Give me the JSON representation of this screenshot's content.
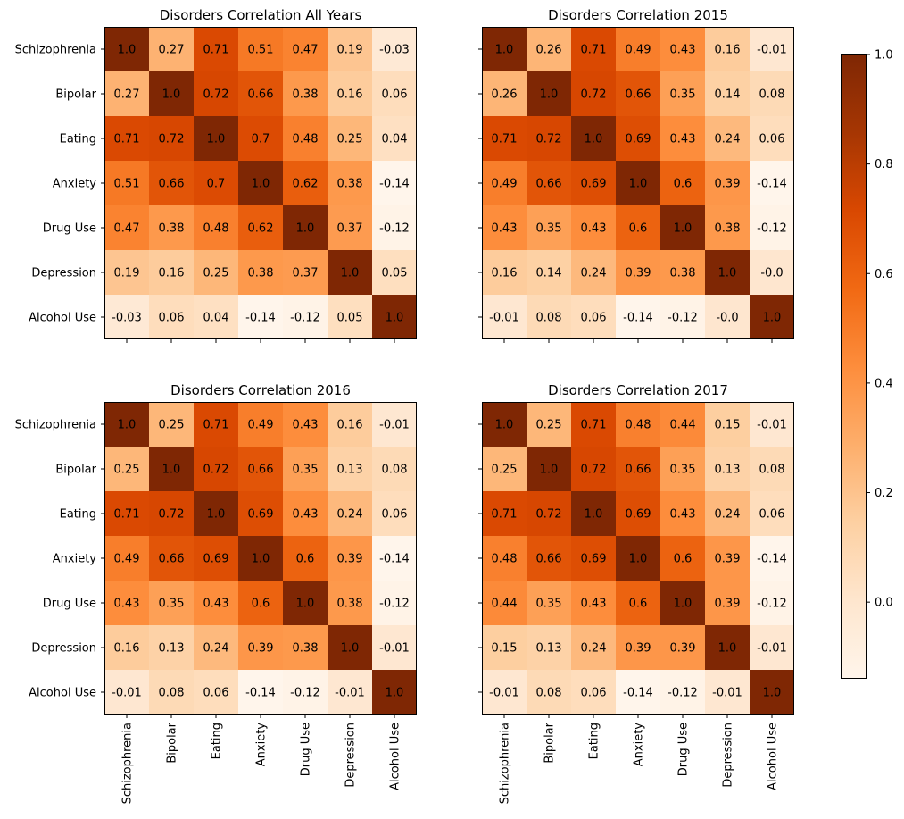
{
  "chart_data": {
    "type": "heatmap",
    "colormap": "Oranges",
    "colorbar": {
      "vmin": -0.14,
      "vmax": 1.0,
      "tick_values": [
        0.0,
        0.2,
        0.4,
        0.6,
        0.8,
        1.0
      ],
      "tick_labels": [
        "0.0",
        "0.2",
        "0.4",
        "0.6",
        "0.8",
        "1.0"
      ]
    },
    "categories": [
      "Schizophrenia",
      "Bipolar",
      "Eating",
      "Anxiety",
      "Drug Use",
      "Depression",
      "Alcohol Use"
    ],
    "panels": [
      {
        "title": "Disorders Correlation All Years",
        "matrix": [
          [
            1.0,
            0.27,
            0.71,
            0.51,
            0.47,
            0.19,
            -0.03
          ],
          [
            0.27,
            1.0,
            0.72,
            0.66,
            0.38,
            0.16,
            0.06
          ],
          [
            0.71,
            0.72,
            1.0,
            0.7,
            0.48,
            0.25,
            0.04
          ],
          [
            0.51,
            0.66,
            0.7,
            1.0,
            0.62,
            0.38,
            -0.14
          ],
          [
            0.47,
            0.38,
            0.48,
            0.62,
            1.0,
            0.37,
            -0.12
          ],
          [
            0.19,
            0.16,
            0.25,
            0.38,
            0.37,
            1.0,
            0.05
          ],
          [
            -0.03,
            0.06,
            0.04,
            -0.14,
            -0.12,
            0.05,
            1.0
          ]
        ],
        "labels": [
          [
            "1.0",
            "0.27",
            "0.71",
            "0.51",
            "0.47",
            "0.19",
            "-0.03"
          ],
          [
            "0.27",
            "1.0",
            "0.72",
            "0.66",
            "0.38",
            "0.16",
            "0.06"
          ],
          [
            "0.71",
            "0.72",
            "1.0",
            "0.7",
            "0.48",
            "0.25",
            "0.04"
          ],
          [
            "0.51",
            "0.66",
            "0.7",
            "1.0",
            "0.62",
            "0.38",
            "-0.14"
          ],
          [
            "0.47",
            "0.38",
            "0.48",
            "0.62",
            "1.0",
            "0.37",
            "-0.12"
          ],
          [
            "0.19",
            "0.16",
            "0.25",
            "0.38",
            "0.37",
            "1.0",
            "0.05"
          ],
          [
            "-0.03",
            "0.06",
            "0.04",
            "-0.14",
            "-0.12",
            "0.05",
            "1.0"
          ]
        ],
        "show_ylabels": true,
        "show_xlabels": false
      },
      {
        "title": "Disorders Correlation 2015",
        "matrix": [
          [
            1.0,
            0.26,
            0.71,
            0.49,
            0.43,
            0.16,
            -0.01
          ],
          [
            0.26,
            1.0,
            0.72,
            0.66,
            0.35,
            0.14,
            0.08
          ],
          [
            0.71,
            0.72,
            1.0,
            0.69,
            0.43,
            0.24,
            0.06
          ],
          [
            0.49,
            0.66,
            0.69,
            1.0,
            0.6,
            0.39,
            -0.14
          ],
          [
            0.43,
            0.35,
            0.43,
            0.6,
            1.0,
            0.38,
            -0.12
          ],
          [
            0.16,
            0.14,
            0.24,
            0.39,
            0.38,
            1.0,
            0.0
          ],
          [
            -0.01,
            0.08,
            0.06,
            -0.14,
            -0.12,
            0.0,
            1.0
          ]
        ],
        "labels": [
          [
            "1.0",
            "0.26",
            "0.71",
            "0.49",
            "0.43",
            "0.16",
            "-0.01"
          ],
          [
            "0.26",
            "1.0",
            "0.72",
            "0.66",
            "0.35",
            "0.14",
            "0.08"
          ],
          [
            "0.71",
            "0.72",
            "1.0",
            "0.69",
            "0.43",
            "0.24",
            "0.06"
          ],
          [
            "0.49",
            "0.66",
            "0.69",
            "1.0",
            "0.6",
            "0.39",
            "-0.14"
          ],
          [
            "0.43",
            "0.35",
            "0.43",
            "0.6",
            "1.0",
            "0.38",
            "-0.12"
          ],
          [
            "0.16",
            "0.14",
            "0.24",
            "0.39",
            "0.38",
            "1.0",
            "-0.0"
          ],
          [
            "-0.01",
            "0.08",
            "0.06",
            "-0.14",
            "-0.12",
            "-0.0",
            "1.0"
          ]
        ],
        "show_ylabels": false,
        "show_xlabels": false
      },
      {
        "title": "Disorders Correlation 2016",
        "matrix": [
          [
            1.0,
            0.25,
            0.71,
            0.49,
            0.43,
            0.16,
            -0.01
          ],
          [
            0.25,
            1.0,
            0.72,
            0.66,
            0.35,
            0.13,
            0.08
          ],
          [
            0.71,
            0.72,
            1.0,
            0.69,
            0.43,
            0.24,
            0.06
          ],
          [
            0.49,
            0.66,
            0.69,
            1.0,
            0.6,
            0.39,
            -0.14
          ],
          [
            0.43,
            0.35,
            0.43,
            0.6,
            1.0,
            0.38,
            -0.12
          ],
          [
            0.16,
            0.13,
            0.24,
            0.39,
            0.38,
            1.0,
            -0.01
          ],
          [
            -0.01,
            0.08,
            0.06,
            -0.14,
            -0.12,
            -0.01,
            1.0
          ]
        ],
        "labels": [
          [
            "1.0",
            "0.25",
            "0.71",
            "0.49",
            "0.43",
            "0.16",
            "-0.01"
          ],
          [
            "0.25",
            "1.0",
            "0.72",
            "0.66",
            "0.35",
            "0.13",
            "0.08"
          ],
          [
            "0.71",
            "0.72",
            "1.0",
            "0.69",
            "0.43",
            "0.24",
            "0.06"
          ],
          [
            "0.49",
            "0.66",
            "0.69",
            "1.0",
            "0.6",
            "0.39",
            "-0.14"
          ],
          [
            "0.43",
            "0.35",
            "0.43",
            "0.6",
            "1.0",
            "0.38",
            "-0.12"
          ],
          [
            "0.16",
            "0.13",
            "0.24",
            "0.39",
            "0.38",
            "1.0",
            "-0.01"
          ],
          [
            "-0.01",
            "0.08",
            "0.06",
            "-0.14",
            "-0.12",
            "-0.01",
            "1.0"
          ]
        ],
        "show_ylabels": true,
        "show_xlabels": true
      },
      {
        "title": "Disorders Correlation 2017",
        "matrix": [
          [
            1.0,
            0.25,
            0.71,
            0.48,
            0.44,
            0.15,
            -0.01
          ],
          [
            0.25,
            1.0,
            0.72,
            0.66,
            0.35,
            0.13,
            0.08
          ],
          [
            0.71,
            0.72,
            1.0,
            0.69,
            0.43,
            0.24,
            0.06
          ],
          [
            0.48,
            0.66,
            0.69,
            1.0,
            0.6,
            0.39,
            -0.14
          ],
          [
            0.44,
            0.35,
            0.43,
            0.6,
            1.0,
            0.39,
            -0.12
          ],
          [
            0.15,
            0.13,
            0.24,
            0.39,
            0.39,
            1.0,
            -0.01
          ],
          [
            -0.01,
            0.08,
            0.06,
            -0.14,
            -0.12,
            -0.01,
            1.0
          ]
        ],
        "labels": [
          [
            "1.0",
            "0.25",
            "0.71",
            "0.48",
            "0.44",
            "0.15",
            "-0.01"
          ],
          [
            "0.25",
            "1.0",
            "0.72",
            "0.66",
            "0.35",
            "0.13",
            "0.08"
          ],
          [
            "0.71",
            "0.72",
            "1.0",
            "0.69",
            "0.43",
            "0.24",
            "0.06"
          ],
          [
            "0.48",
            "0.66",
            "0.69",
            "1.0",
            "0.6",
            "0.39",
            "-0.14"
          ],
          [
            "0.44",
            "0.35",
            "0.43",
            "0.6",
            "1.0",
            "0.39",
            "-0.12"
          ],
          [
            "0.15",
            "0.13",
            "0.24",
            "0.39",
            "0.39",
            "1.0",
            "-0.01"
          ],
          [
            "-0.01",
            "0.08",
            "0.06",
            "-0.14",
            "-0.12",
            "-0.01",
            "1.0"
          ]
        ],
        "show_ylabels": false,
        "show_xlabels": true
      }
    ]
  }
}
